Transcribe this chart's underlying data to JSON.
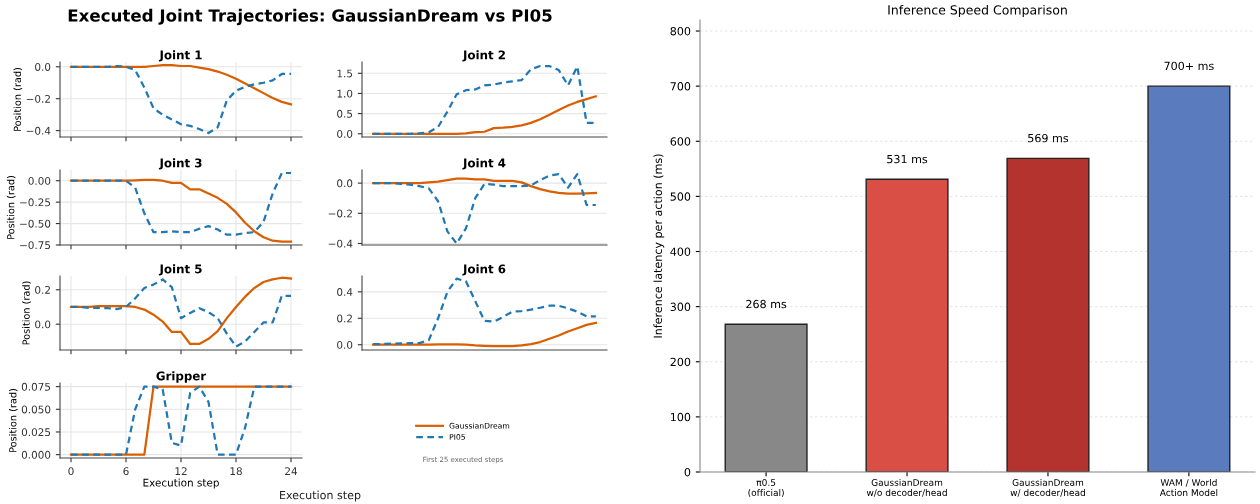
{
  "chart_data": [
    {
      "type": "line",
      "title": "Joint 1",
      "ylabel": "Position (rad)",
      "annotations": [
        "Executed Joint Trajectories: GaussianDream vs PI05"
      ],
      "x": [
        0,
        1,
        2,
        3,
        4,
        5,
        6,
        7,
        8,
        9,
        10,
        11,
        12,
        13,
        14,
        15,
        16,
        17,
        18,
        19,
        20,
        21,
        22,
        23,
        24
      ],
      "xlim": [
        -1.2,
        25.2
      ],
      "xticks": [
        0,
        6,
        12,
        18,
        24
      ],
      "ylim": [
        -0.44,
        0.03
      ],
      "yticks": [
        {
          "value": 0,
          "label": "0.0"
        },
        {
          "value": -0.2,
          "label": "−0.2"
        },
        {
          "value": -0.4,
          "label": "−0.4"
        }
      ],
      "tick_labels": "y",
      "grid": true,
      "legend": "lower right",
      "series": [
        {
          "name": "GaussianDream",
          "color": "#d95f02",
          "line_style": "solid",
          "values": [
            0,
            0,
            0,
            0,
            0,
            0,
            0,
            0,
            0,
            0.005,
            0.01,
            0.01,
            0.005,
            0.005,
            -0.005,
            -0.015,
            -0.03,
            -0.05,
            -0.075,
            -0.105,
            -0.135,
            -0.165,
            -0.195,
            -0.22,
            -0.235
          ]
        },
        {
          "name": "PI05",
          "color": "#1f78b4",
          "line_style": "dashed",
          "values": [
            0,
            0,
            0,
            0,
            0,
            0.005,
            0,
            -0.02,
            -0.13,
            -0.26,
            -0.3,
            -0.33,
            -0.36,
            -0.37,
            -0.39,
            -0.415,
            -0.38,
            -0.21,
            -0.15,
            -0.125,
            -0.11,
            -0.1,
            -0.085,
            -0.045,
            -0.045
          ]
        }
      ]
    },
    {
      "type": "line",
      "title": "Joint 2",
      "categories": [
        null,
        null,
        null,
        null,
        null,
        null,
        null,
        null,
        null,
        null,
        null,
        null,
        null,
        null,
        null,
        null,
        null,
        null,
        null,
        null,
        null,
        null,
        null,
        null,
        null
      ],
      "ylim": [
        -0.08,
        1.78
      ],
      "yticks": [
        {
          "value": 0,
          "label": "0.0"
        },
        {
          "value": 0.5,
          "label": "0.5"
        },
        {
          "value": 1,
          "label": "1.0"
        },
        {
          "value": 1.5,
          "label": "1.5"
        }
      ],
      "grid": "y",
      "legend": false,
      "series": [
        {
          "color": "#d95f02",
          "line_style": "solid",
          "values": [
            0,
            0,
            0,
            0,
            0,
            0,
            0,
            0,
            0,
            0,
            0.01,
            0.04,
            0.05,
            0.14,
            0.15,
            0.17,
            0.21,
            0.27,
            0.36,
            0.47,
            0.59,
            0.7,
            0.79,
            0.86,
            0.93
          ]
        },
        {
          "color": "#1f78b4",
          "line_style": "dashed",
          "values": [
            0,
            0,
            0,
            0,
            0,
            0.01,
            0.04,
            0.17,
            0.55,
            0.98,
            1.08,
            1.1,
            1.2,
            1.22,
            1.27,
            1.3,
            1.33,
            1.6,
            1.68,
            1.68,
            1.58,
            1.2,
            1.67,
            0.27,
            0.27
          ]
        }
      ]
    },
    {
      "type": "line",
      "title": "Joint 3",
      "ylabel": "Position (rad)",
      "x": [
        0,
        1,
        2,
        3,
        4,
        5,
        6,
        7,
        8,
        9,
        10,
        11,
        12,
        13,
        14,
        15,
        16,
        17,
        18,
        19,
        20,
        21,
        22,
        23,
        24
      ],
      "xlim": [
        -1.2,
        25.2
      ],
      "xticks": [
        0,
        6,
        12,
        18,
        24
      ],
      "ylim": [
        -0.75,
        0.125
      ],
      "yticks": [
        {
          "value": 0,
          "label": "0.00"
        },
        {
          "value": -0.25,
          "label": "−0.25"
        },
        {
          "value": -0.5,
          "label": "−0.50"
        },
        {
          "value": -0.75,
          "label": "−0.75"
        }
      ],
      "tick_labels": "y",
      "grid": true,
      "legend": false,
      "series": [
        {
          "color": "#d95f02",
          "line_style": "solid",
          "values": [
            0,
            0,
            0,
            0,
            0,
            0,
            0,
            0.005,
            0.01,
            0.01,
            0,
            -0.025,
            -0.025,
            -0.1,
            -0.1,
            -0.15,
            -0.2,
            -0.27,
            -0.37,
            -0.49,
            -0.59,
            -0.66,
            -0.7,
            -0.71,
            -0.71
          ]
        },
        {
          "color": "#1f78b4",
          "line_style": "dashed",
          "values": [
            0,
            0,
            0,
            0,
            0,
            0,
            0,
            -0.08,
            -0.38,
            -0.6,
            -0.6,
            -0.59,
            -0.6,
            -0.6,
            -0.56,
            -0.53,
            -0.57,
            -0.63,
            -0.63,
            -0.61,
            -0.6,
            -0.48,
            -0.15,
            0.09,
            0.09
          ]
        }
      ]
    },
    {
      "type": "line",
      "title": "Joint 4",
      "categories": [
        null,
        null,
        null,
        null,
        null,
        null,
        null,
        null,
        null,
        null,
        null,
        null,
        null,
        null,
        null,
        null,
        null,
        null,
        null,
        null,
        null,
        null,
        null,
        null,
        null
      ],
      "ylim": [
        -0.41,
        0.087
      ],
      "yticks": [
        {
          "value": 0,
          "label": "0.0"
        },
        {
          "value": -0.2,
          "label": "−0.2"
        },
        {
          "value": -0.4,
          "label": "−0.4"
        }
      ],
      "grid": "y",
      "legend": false,
      "series": [
        {
          "color": "#d95f02",
          "line_style": "solid",
          "values": [
            0,
            0,
            0,
            0,
            0,
            0,
            0.005,
            0.01,
            0.02,
            0.03,
            0.03,
            0.025,
            0.025,
            0.015,
            0.015,
            0.015,
            0.005,
            -0.02,
            -0.04,
            -0.055,
            -0.065,
            -0.07,
            -0.07,
            -0.068,
            -0.065
          ]
        },
        {
          "color": "#1f78b4",
          "line_style": "dashed",
          "values": [
            0,
            0,
            0,
            -0.005,
            -0.01,
            -0.02,
            -0.035,
            -0.12,
            -0.32,
            -0.4,
            -0.3,
            -0.1,
            -0.005,
            -0.01,
            -0.02,
            -0.02,
            -0.02,
            -0.015,
            0.02,
            0.05,
            0.06,
            -0.03,
            0.06,
            -0.145,
            -0.145
          ]
        }
      ]
    },
    {
      "type": "line",
      "title": "Joint 5",
      "ylabel": "Position (rad)",
      "x": [
        0,
        1,
        2,
        3,
        4,
        5,
        6,
        7,
        8,
        9,
        10,
        11,
        12,
        13,
        14,
        15,
        16,
        17,
        18,
        19,
        20,
        21,
        22,
        23,
        24
      ],
      "xlim": [
        -1.2,
        25.2
      ],
      "xticks": [
        0,
        6,
        12,
        18,
        24
      ],
      "ylim": [
        -0.15,
        0.28
      ],
      "yticks": [
        {
          "value": 0,
          "label": "0.0"
        },
        {
          "value": 0.2,
          "label": "0.2"
        }
      ],
      "tick_labels": "y",
      "grid": true,
      "legend": false,
      "series": [
        {
          "color": "#d95f02",
          "line_style": "solid",
          "values": [
            0.1,
            0.1,
            0.1,
            0.105,
            0.105,
            0.105,
            0.105,
            0.1,
            0.085,
            0.055,
            0.015,
            -0.045,
            -0.045,
            -0.115,
            -0.115,
            -0.085,
            -0.04,
            0.035,
            0.1,
            0.16,
            0.21,
            0.245,
            0.26,
            0.27,
            0.265
          ]
        },
        {
          "color": "#1f78b4",
          "line_style": "dashed",
          "values": [
            0.1,
            0.1,
            0.095,
            0.095,
            0.093,
            0.088,
            0.1,
            0.15,
            0.21,
            0.23,
            0.26,
            0.215,
            0.035,
            0.065,
            0.093,
            0.07,
            0.035,
            -0.055,
            -0.13,
            -0.1,
            -0.045,
            0.01,
            0.01,
            0.165,
            0.165
          ]
        }
      ]
    },
    {
      "type": "line",
      "title": "Joint 6",
      "categories": [
        null,
        null,
        null,
        null,
        null,
        null,
        null,
        null,
        null,
        null,
        null,
        null,
        null,
        null,
        null,
        null,
        null,
        null,
        null,
        null,
        null,
        null,
        null,
        null,
        null
      ],
      "ylim": [
        -0.04,
        0.52
      ],
      "yticks": [
        {
          "value": 0,
          "label": "0.0"
        },
        {
          "value": 0.2,
          "label": "0.2"
        },
        {
          "value": 0.4,
          "label": "0.4"
        }
      ],
      "grid": "y",
      "legend": false,
      "series": [
        {
          "color": "#d95f02",
          "line_style": "solid",
          "values": [
            0,
            0,
            0,
            0,
            0,
            0,
            0,
            0.002,
            0.003,
            0.003,
            0,
            -0.005,
            -0.008,
            -0.01,
            -0.01,
            -0.01,
            -0.005,
            0.005,
            0.02,
            0.045,
            0.07,
            0.1,
            0.125,
            0.15,
            0.165
          ]
        },
        {
          "color": "#1f78b4",
          "line_style": "dashed",
          "values": [
            0.005,
            0.005,
            0.008,
            0.01,
            0.012,
            0.012,
            0.035,
            0.2,
            0.4,
            0.5,
            0.48,
            0.33,
            0.18,
            0.175,
            0.21,
            0.25,
            0.255,
            0.265,
            0.28,
            0.295,
            0.295,
            0.275,
            0.25,
            0.215,
            0.215
          ]
        }
      ]
    },
    {
      "type": "line",
      "title": "Gripper",
      "xlabel": "Execution step",
      "ylabel": "Position (rad)",
      "annotations": [
        "First 25 executed steps",
        "Execution step"
      ],
      "x": [
        0,
        1,
        2,
        3,
        4,
        5,
        6,
        7,
        8,
        9,
        10,
        11,
        12,
        13,
        14,
        15,
        16,
        17,
        18,
        19,
        20,
        21,
        22,
        23,
        24
      ],
      "xlim": [
        -1.2,
        25.2
      ],
      "xticks": [
        0,
        6,
        12,
        18,
        24
      ],
      "ylim": [
        -0.0037,
        0.079
      ],
      "yticks": [
        {
          "value": 0,
          "label": "0.000"
        },
        {
          "value": 0.025,
          "label": "0.025"
        },
        {
          "value": 0.05,
          "label": "0.050"
        },
        {
          "value": 0.075,
          "label": "0.075"
        }
      ],
      "grid": true,
      "legend": false,
      "series": [
        {
          "color": "#d95f02",
          "line_style": "solid",
          "values": [
            0,
            0,
            0,
            0,
            0,
            0,
            0,
            0,
            0,
            0.075,
            0.075,
            0.075,
            0.075,
            0.075,
            0.075,
            0.075,
            0.075,
            0.075,
            0.075,
            0.075,
            0.075,
            0.075,
            0.075,
            0.075,
            0.075
          ]
        },
        {
          "color": "#1f78b4",
          "line_style": "dashed",
          "values": [
            0,
            0,
            0,
            0,
            0,
            0,
            0,
            0.05,
            0.075,
            0.075,
            0.072,
            0.013,
            0.01,
            0.068,
            0.075,
            0.058,
            0,
            0,
            0,
            0.03,
            0.075,
            0.075,
            0.075,
            0.075,
            0.075
          ]
        }
      ]
    },
    {
      "type": "bar",
      "title": "Inference Speed Comparison",
      "ylabel": "Inference latency per action (ms)",
      "categories": [
        "π0.5\n(official)",
        "GaussianDream\nw/o decoder/head",
        "GaussianDream\nw/ decoder/head",
        "WAM / World\nAction Model"
      ],
      "values": [
        268,
        531,
        569,
        700
      ],
      "colors": [
        "#888888",
        "#d94f45",
        "#b5332e",
        "#5b7bbf"
      ],
      "value_labels": [
        "268 ms",
        "531 ms",
        "569 ms",
        "700+ ms"
      ],
      "ylim": [
        0,
        820
      ],
      "yticks": [
        0,
        100,
        200,
        300,
        400,
        500,
        600,
        700,
        800
      ],
      "grid": "y",
      "legend": false
    }
  ]
}
